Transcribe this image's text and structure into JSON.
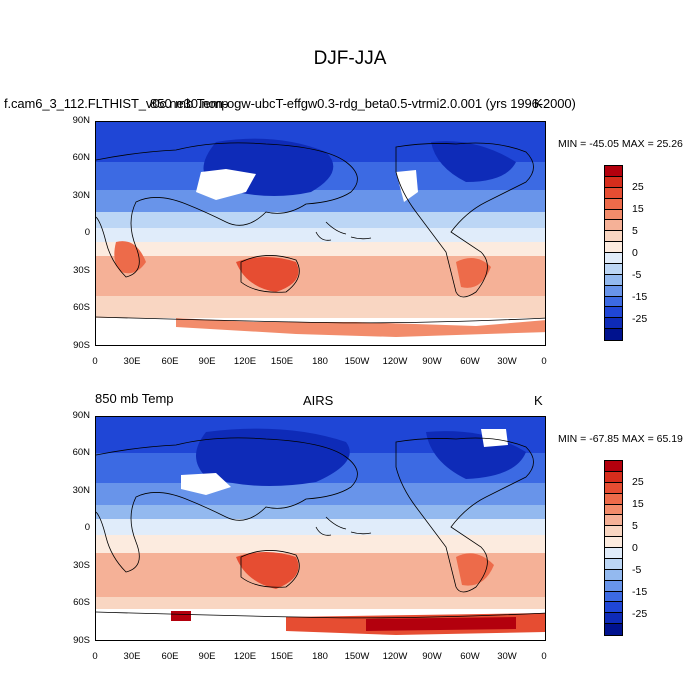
{
  "title": "DJF-JJA",
  "panels": [
    {
      "id": "model",
      "left_title": "f.cam6_3_112.FLTHIST_v0c.ne30.non-ogw-ubcT-effgw0.3-rdg_beta0.5-vtrmi2.0.001 (yrs 1996-2000)",
      "overlay_left": "850 mb Temp",
      "center_title": "",
      "right_title": "K",
      "stats": "MIN = -45.05 MAX =  25.26"
    },
    {
      "id": "obs",
      "left_title": "850 mb Temp",
      "overlay_left": "",
      "center_title": "AIRS",
      "right_title": "K",
      "stats": "MIN = -67.85 MAX =  65.19"
    }
  ],
  "lat_labels": [
    "90N",
    "60N",
    "30N",
    "0",
    "30S",
    "60S",
    "90S"
  ],
  "lon_labels": [
    "0",
    "30E",
    "60E",
    "90E",
    "120E",
    "150E",
    "180",
    "150W",
    "120W",
    "90W",
    "60W",
    "30W",
    "0"
  ],
  "colorbar": {
    "unit": "K",
    "labels": [
      "25",
      "15",
      "5",
      "0",
      "-5",
      "-15",
      "-25"
    ],
    "colors": [
      "#b3000d",
      "#d62d1c",
      "#e64d32",
      "#ed6b4a",
      "#f28c6b",
      "#f5b197",
      "#f9d6c2",
      "#fcebdf",
      "#e0ecfa",
      "#bcd6f5",
      "#93b9ef",
      "#6894ea",
      "#3c6ae3",
      "#1f46d6",
      "#0e2bb8",
      "#00128e"
    ]
  },
  "field_colors": {
    "deep_blue": "#0e2bb8",
    "blue": "#1f46d6",
    "mid_blue": "#3c6ae3",
    "light_blue": "#6894ea",
    "pale_blue": "#bcd6f5",
    "very_pale_blue": "#e0ecfa",
    "cream": "#fcebdf",
    "pale_orange": "#f9d6c2",
    "light_orange": "#f5b197",
    "orange": "#f28c6b",
    "dark_orange": "#e64d32",
    "red": "#b3000d",
    "missing": "#ffffff"
  }
}
